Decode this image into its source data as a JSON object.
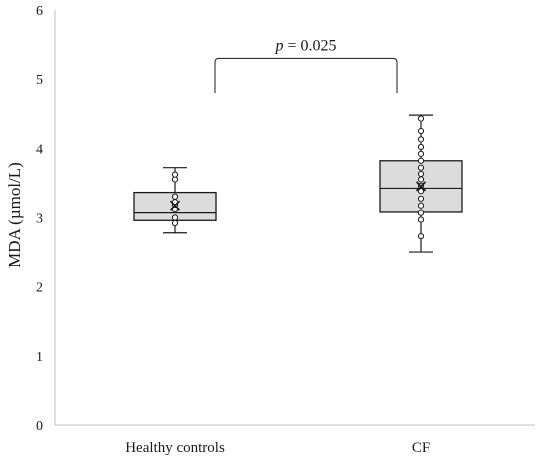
{
  "chart_data": {
    "type": "boxplot",
    "ylabel": "MDA (µmol/L)",
    "ylim": [
      0,
      6
    ],
    "yticks": [
      "0",
      "1",
      "2",
      "3",
      "4",
      "5",
      "6"
    ],
    "grid": false,
    "categories": [
      "Healthy controls",
      "CF"
    ],
    "boxes": [
      {
        "category": "Healthy controls",
        "whisker_low": 2.78,
        "q1": 2.96,
        "median": 3.07,
        "q3": 3.36,
        "whisker_high": 3.72,
        "mean": 3.17,
        "points": [
          2.92,
          3.0,
          3.12,
          3.18,
          3.22,
          3.3,
          3.55,
          3.62
        ]
      },
      {
        "category": "CF",
        "whisker_low": 2.5,
        "q1": 3.08,
        "median": 3.42,
        "q3": 3.82,
        "whisker_high": 4.48,
        "mean": 3.45,
        "points": [
          2.73,
          2.97,
          3.07,
          3.17,
          3.27,
          3.38,
          3.46,
          3.55,
          3.63,
          3.72,
          3.82,
          3.92,
          4.02,
          4.13,
          4.25,
          4.43
        ]
      }
    ],
    "annotation": {
      "p_symbol": "p",
      "p_text": " = 0.025",
      "between": [
        "Healthy controls",
        "CF"
      ]
    },
    "colors": {
      "box_fill": "#dcdcdc",
      "line": "#1a1a1a",
      "axis": "#bfbfbf",
      "point_fill": "#ffffff"
    }
  }
}
